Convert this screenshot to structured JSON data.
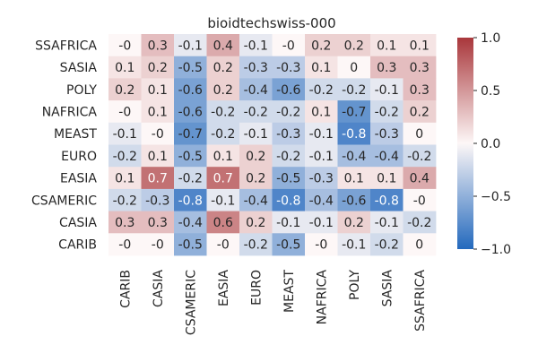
{
  "chart_data": {
    "type": "heatmap",
    "title": "bioidtechswiss-000",
    "row_labels": [
      "SSAFRICA",
      "SASIA",
      "POLY",
      "NAFRICA",
      "MEAST",
      "EURO",
      "EASIA",
      "CSAMERIC",
      "CASIA",
      "CARIB"
    ],
    "col_labels": [
      "CARIB",
      "CASIA",
      "CSAMERIC",
      "EASIA",
      "EURO",
      "MEAST",
      "NAFRICA",
      "POLY",
      "SASIA",
      "SSAFRICA"
    ],
    "values": [
      [
        -0.0,
        0.3,
        -0.1,
        0.4,
        -0.1,
        -0.0,
        0.2,
        0.2,
        0.1,
        0.1
      ],
      [
        0.1,
        0.2,
        -0.5,
        0.2,
        -0.3,
        -0.3,
        0.1,
        0.0,
        0.3,
        0.3
      ],
      [
        0.2,
        0.1,
        -0.6,
        0.2,
        -0.4,
        -0.6,
        -0.2,
        -0.2,
        -0.1,
        0.3
      ],
      [
        -0.0,
        0.1,
        -0.6,
        -0.2,
        -0.2,
        -0.2,
        0.1,
        -0.7,
        -0.2,
        0.2
      ],
      [
        -0.1,
        -0.0,
        -0.7,
        -0.2,
        -0.1,
        -0.3,
        -0.1,
        -0.8,
        -0.3,
        0.0
      ],
      [
        -0.2,
        0.1,
        -0.5,
        0.1,
        0.2,
        -0.2,
        -0.1,
        -0.4,
        -0.4,
        -0.2
      ],
      [
        0.1,
        0.7,
        -0.2,
        0.7,
        0.2,
        -0.5,
        -0.3,
        0.1,
        0.1,
        0.4
      ],
      [
        -0.2,
        -0.3,
        -0.8,
        -0.1,
        -0.4,
        -0.8,
        -0.4,
        -0.6,
        -0.8,
        -0.0
      ],
      [
        0.3,
        0.3,
        -0.4,
        0.6,
        0.2,
        -0.1,
        -0.1,
        0.2,
        -0.1,
        -0.2
      ],
      [
        -0.0,
        -0.0,
        -0.5,
        -0.0,
        -0.2,
        -0.5,
        -0.0,
        -0.1,
        -0.2,
        0.0
      ]
    ],
    "cell_labels": [
      [
        "-0",
        "0.3",
        "-0.1",
        "0.4",
        "-0.1",
        "-0",
        "0.2",
        "0.2",
        "0.1",
        "0.1"
      ],
      [
        "0.1",
        "0.2",
        "-0.5",
        "0.2",
        "-0.3",
        "-0.3",
        "0.1",
        "0",
        "0.3",
        "0.3"
      ],
      [
        "0.2",
        "0.1",
        "-0.6",
        "0.2",
        "-0.4",
        "-0.6",
        "-0.2",
        "-0.2",
        "-0.1",
        "0.3"
      ],
      [
        "-0",
        "0.1",
        "-0.6",
        "-0.2",
        "-0.2",
        "-0.2",
        "0.1",
        "-0.7",
        "-0.2",
        "0.2"
      ],
      [
        "-0.1",
        "-0",
        "-0.7",
        "-0.2",
        "-0.1",
        "-0.3",
        "-0.1",
        "-0.8",
        "-0.3",
        "0"
      ],
      [
        "-0.2",
        "0.1",
        "-0.5",
        "0.1",
        "0.2",
        "-0.2",
        "-0.1",
        "-0.4",
        "-0.4",
        "-0.2"
      ],
      [
        "0.1",
        "0.7",
        "-0.2",
        "0.7",
        "0.2",
        "-0.5",
        "-0.3",
        "0.1",
        "0.1",
        "0.4"
      ],
      [
        "-0.2",
        "-0.3",
        "-0.8",
        "-0.1",
        "-0.4",
        "-0.8",
        "-0.4",
        "-0.6",
        "-0.8",
        "-0"
      ],
      [
        "0.3",
        "0.3",
        "-0.4",
        "0.6",
        "0.2",
        "-0.1",
        "-0.1",
        "0.2",
        "-0.1",
        "-0.2"
      ],
      [
        "-0",
        "-0",
        "-0.5",
        "-0",
        "-0.2",
        "-0.5",
        "-0",
        "-0.1",
        "-0.2",
        "0"
      ]
    ],
    "vmin": -1.0,
    "vmax": 1.0,
    "colorbar_ticks": [
      {
        "value": 1.0,
        "label": "1.0"
      },
      {
        "value": 0.5,
        "label": "0.5"
      },
      {
        "value": 0.0,
        "label": "0.0"
      },
      {
        "value": -0.5,
        "label": "−0.5"
      },
      {
        "value": -1.0,
        "label": "−1.0"
      }
    ],
    "colormap": {
      "name": "vlag",
      "low": "#2369bd",
      "mid": "#fdf7f7",
      "high": "#a9373b"
    },
    "grid": false,
    "legend": "colorbar-right"
  }
}
